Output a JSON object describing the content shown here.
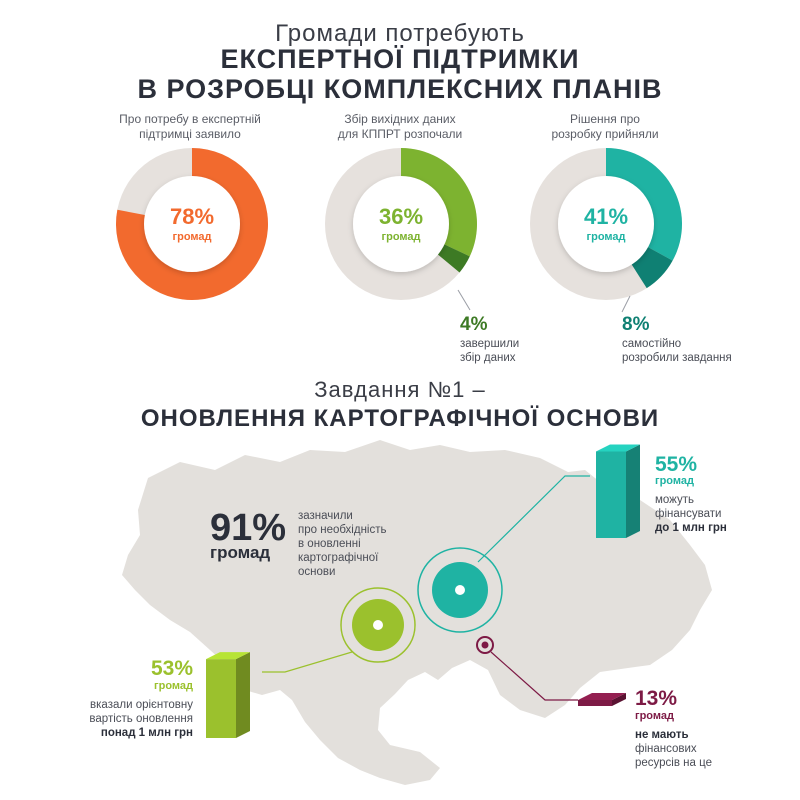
{
  "header": {
    "line1": "Громади потребують",
    "line2": "ЕКСПЕРТНОЇ ПІДТРИМКИ",
    "line3": "В РОЗРОБЦІ КОМПЛЕКСНИХ ПЛАНІВ"
  },
  "section2": {
    "line1": "Завдання №1 –",
    "line2": "ОНОВЛЕННЯ КАРТОГРАФІЧНОЇ ОСНОВИ"
  },
  "chart_data": [
    {
      "type": "pie",
      "caption_lines": [
        "Про потребу в експертній",
        "підтримці заявило"
      ],
      "value": 78,
      "value_label": "78%",
      "unit": "громад",
      "color": "#f26a2e",
      "remainder_color": "#e6e1dd"
    },
    {
      "type": "pie",
      "caption_lines": [
        "Збір вихідних даних",
        "для КППРТ розпочали"
      ],
      "value": 36,
      "value_label": "36%",
      "unit": "громад",
      "sub_value": 4,
      "sub_value_label": "4%",
      "sub_caption_lines": [
        "завершили",
        "збір даних"
      ],
      "color": "#7db330",
      "sub_color": "#3d7a24",
      "remainder_color": "#e6e1dd"
    },
    {
      "type": "pie",
      "caption_lines": [
        "Рішення про",
        "розробку прийняли"
      ],
      "value": 41,
      "value_label": "41%",
      "unit": "громад",
      "sub_value": 8,
      "sub_value_label": "8%",
      "sub_caption_lines": [
        "самостійно",
        "розробили завдання"
      ],
      "color": "#1fb3a3",
      "sub_color": "#0f8073",
      "remainder_color": "#e6e1dd"
    }
  ],
  "map_stats": {
    "main": {
      "value_label": "91%",
      "unit": "громад",
      "lines": [
        "зазначили",
        "про необхідність",
        "в оновленні",
        "картографічної",
        "основи"
      ]
    },
    "teal": {
      "value": 55,
      "value_label": "55%",
      "unit": "громад",
      "lines": [
        "можуть",
        "фінансувати"
      ],
      "bold_line": "до 1 млн грн",
      "color": "#1fb3a3"
    },
    "green": {
      "value": 53,
      "value_label": "53%",
      "unit": "громад",
      "lines": [
        "вказали орієнтовну",
        "вартість оновлення"
      ],
      "bold_line": "понад 1 млн грн",
      "color": "#9bc12d"
    },
    "maroon": {
      "value": 13,
      "value_label": "13%",
      "unit": "громад",
      "bold_line": "не мають",
      "lines": [
        "фінансових",
        "ресурсів на це"
      ],
      "color": "#7d1a45"
    }
  }
}
